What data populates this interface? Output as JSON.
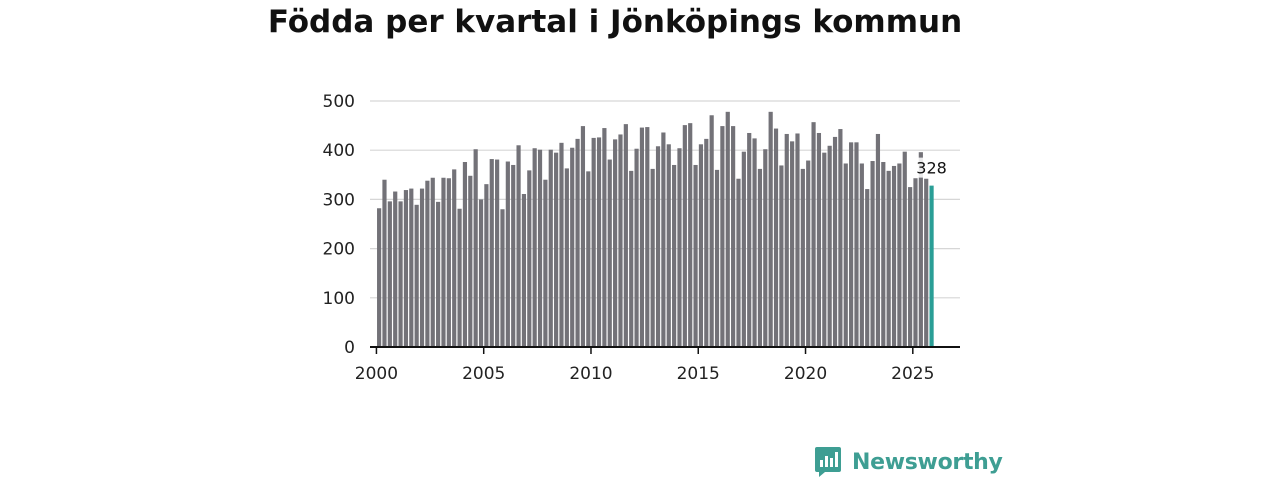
{
  "chart_data": {
    "type": "bar",
    "title": "Födda per kvartal i Jönköpings kommun",
    "xlabel": "",
    "ylabel": "",
    "x_start_year": 2000,
    "x_step": 0.25,
    "xlim": [
      1999.7,
      2027.2
    ],
    "ylim": [
      0,
      500
    ],
    "x_ticks": [
      "2000",
      "2005",
      "2010",
      "2015",
      "2020",
      "2025"
    ],
    "y_ticks": [
      "0",
      "100",
      "200",
      "300",
      "400",
      "500"
    ],
    "grid": true,
    "legend": "none",
    "bar_color": "#737278",
    "highlight_color": "#2a9e96",
    "last_value_label": "328",
    "values": [
      282,
      340,
      296,
      316,
      296,
      319,
      322,
      289,
      322,
      338,
      344,
      295,
      344,
      343,
      361,
      281,
      376,
      348,
      402,
      300,
      331,
      382,
      381,
      280,
      377,
      370,
      410,
      311,
      359,
      404,
      401,
      340,
      401,
      395,
      415,
      363,
      405,
      423,
      449,
      357,
      425,
      426,
      445,
      381,
      422,
      432,
      453,
      358,
      403,
      446,
      447,
      362,
      408,
      436,
      412,
      370,
      404,
      451,
      455,
      370,
      412,
      423,
      471,
      360,
      449,
      478,
      449,
      342,
      397,
      435,
      424,
      362,
      402,
      478,
      444,
      369,
      433,
      418,
      434,
      362,
      379,
      457,
      435,
      395,
      409,
      427,
      443,
      373,
      416,
      416,
      373,
      321,
      378,
      433,
      376,
      358,
      368,
      373,
      397,
      325,
      343,
      396,
      342,
      328
    ]
  },
  "brand": {
    "name": "Newsworthy",
    "logo_icon": "bar-chart-speech-bubble-icon",
    "color": "#3e9e93"
  }
}
